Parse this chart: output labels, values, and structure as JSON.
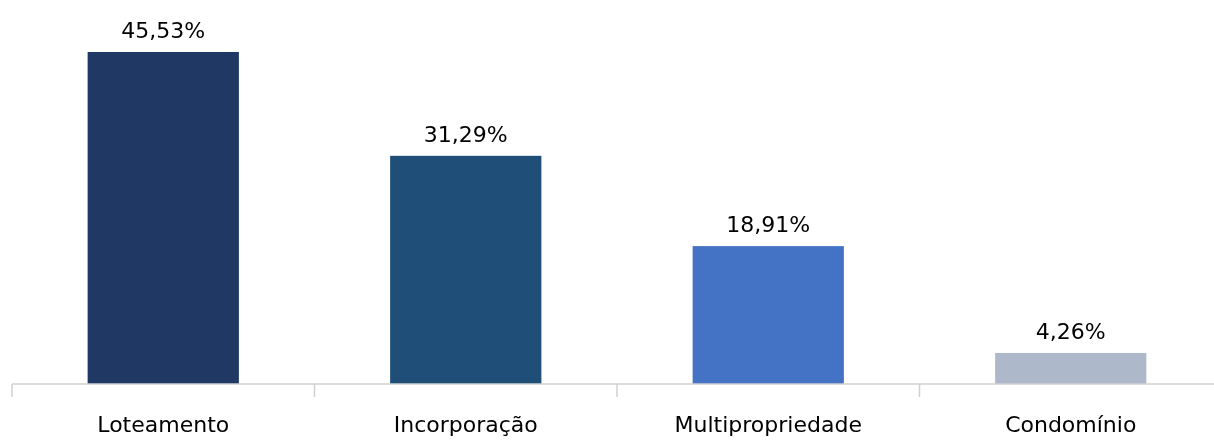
{
  "chart_data": {
    "type": "bar",
    "categories": [
      "Loteamento",
      "Incorporação",
      "Multipropriedade",
      "Condomínio"
    ],
    "values": [
      45.53,
      31.29,
      18.91,
      4.26
    ],
    "colors": [
      "#203864",
      "#1f4e79",
      "#4472c4",
      "#adb9ca"
    ],
    "value_labels": [
      "45,53%",
      "31,29%",
      "18,91%",
      "4,26%"
    ]
  }
}
